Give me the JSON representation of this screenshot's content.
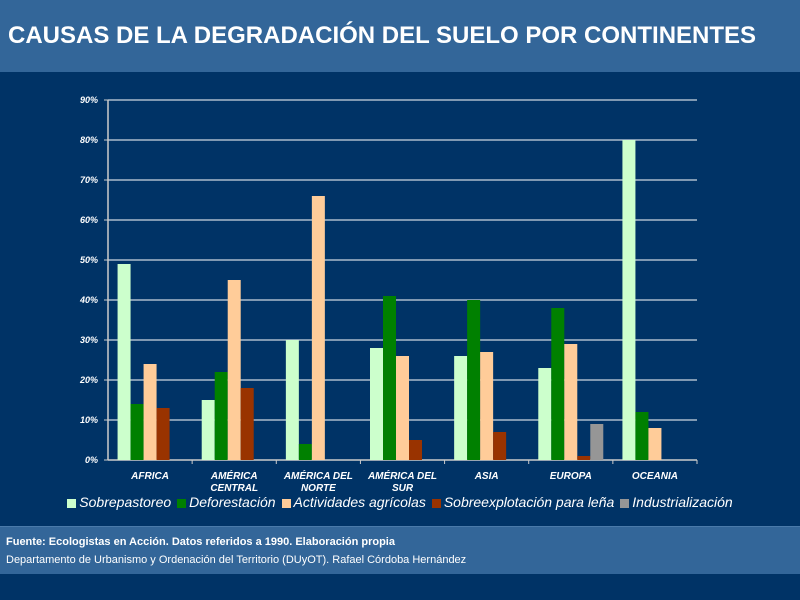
{
  "header": {
    "title": "CAUSAS DE LA DEGRADACIÓN DEL SUELO POR CONTINENTES"
  },
  "chart_data": {
    "type": "bar",
    "title": "",
    "xlabel": "",
    "ylabel": "",
    "ylim": [
      0,
      90
    ],
    "yticks": [
      "0%",
      "10%",
      "20%",
      "30%",
      "40%",
      "50%",
      "60%",
      "70%",
      "80%",
      "90%"
    ],
    "grid": true,
    "legend_position": "bottom",
    "categories": [
      [
        "AFRICA"
      ],
      [
        "AMÉRICA",
        "CENTRAL"
      ],
      [
        "AMÉRICA DEL",
        "NORTE"
      ],
      [
        "AMÉRICA DEL",
        "SUR"
      ],
      [
        "ASIA"
      ],
      [
        "EUROPA"
      ],
      [
        "OCEANIA"
      ]
    ],
    "series": [
      {
        "name": "Sobrepastoreo",
        "color": "#CCFFCC",
        "values": [
          49,
          15,
          30,
          28,
          26,
          23,
          80
        ]
      },
      {
        "name": "Deforestación",
        "color": "#008000",
        "values": [
          14,
          22,
          4,
          41,
          40,
          38,
          12
        ]
      },
      {
        "name": "Actividades agrícolas",
        "color": "#FFCC99",
        "values": [
          24,
          45,
          66,
          26,
          27,
          29,
          8
        ]
      },
      {
        "name": "Sobreexplotación para leña",
        "color": "#993300",
        "values": [
          13,
          18,
          0,
          5,
          7,
          1,
          0
        ]
      },
      {
        "name": "Industrialización",
        "color": "#969696",
        "values": [
          0,
          0,
          0,
          0,
          0,
          9,
          0
        ]
      }
    ]
  },
  "footer": {
    "source": "Fuente: Ecologistas en Acción. Datos referidos a 1990. Elaboración propia",
    "department": "Departamento de Urbanismo y Ordenación del Territorio (DUyOT). Rafael Córdoba Hernández"
  }
}
